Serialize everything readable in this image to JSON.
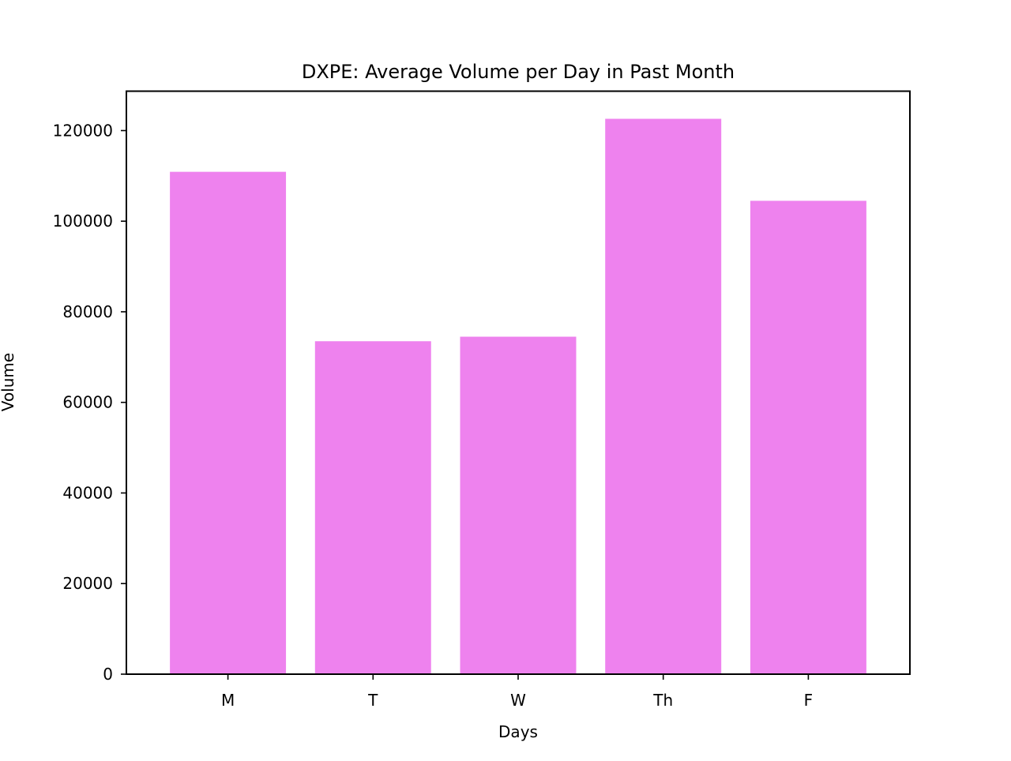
{
  "chart_data": {
    "type": "bar",
    "title": "DXPE: Average Volume per Day in Past Month",
    "xlabel": "Days",
    "ylabel": "Volume",
    "categories": [
      "M",
      "T",
      "W",
      "Th",
      "F"
    ],
    "values": [
      110900,
      73500,
      74500,
      122600,
      104500
    ],
    "ylim": [
      0,
      128700
    ],
    "yticks": [
      0,
      20000,
      40000,
      60000,
      80000,
      100000,
      120000
    ],
    "grid": false,
    "legend": "none",
    "bar_color": "#ee82ee"
  }
}
